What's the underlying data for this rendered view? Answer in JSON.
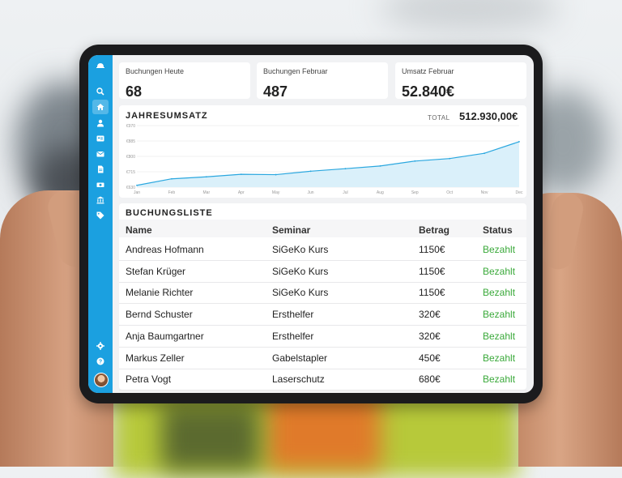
{
  "colors": {
    "accent": "#1ba0e0",
    "paid": "#3aa93a",
    "chart_line": "#2aa7df",
    "chart_fill": "#d6eefa"
  },
  "sidebar": {
    "icons": [
      "logo-icon",
      "search-icon",
      "home-icon",
      "user-icon",
      "contact-card-icon",
      "mail-icon",
      "document-icon",
      "payment-icon",
      "bank-icon",
      "tag-icon",
      "settings-icon",
      "help-icon"
    ],
    "active": "home-icon"
  },
  "stats": [
    {
      "label": "Buchungen Heute",
      "value": "68"
    },
    {
      "label": "Buchungen Februar",
      "value": "487"
    },
    {
      "label": "Umsatz Februar",
      "value": "52.840€"
    }
  ],
  "revenue": {
    "title": "JAHRESUMSATZ",
    "total_label": "TOTAL",
    "total_value": "512.930,00€"
  },
  "chart_data": {
    "type": "area",
    "x": [
      "Jan",
      "Feb",
      "Mar",
      "Apr",
      "May",
      "Jun",
      "Jul",
      "Aug",
      "Sep",
      "Oct",
      "Nov",
      "Dec"
    ],
    "y_ticks": [
      "€970",
      "€885",
      "€800",
      "€715",
      "€630"
    ],
    "values": [
      640,
      676,
      687,
      701,
      699,
      718,
      732,
      747,
      774,
      788,
      817,
      881
    ],
    "ylim": [
      630,
      970
    ],
    "grid": true
  },
  "bookings": {
    "title": "BUCHUNGSLISTE",
    "columns": [
      "Name",
      "Seminar",
      "Betrag",
      "Status"
    ],
    "rows": [
      [
        "Andreas Hofmann",
        "SiGeKo Kurs",
        "1150€",
        "Bezahlt"
      ],
      [
        "Stefan Krüger",
        "SiGeKo Kurs",
        "1150€",
        "Bezahlt"
      ],
      [
        "Melanie Richter",
        "SiGeKo Kurs",
        "1150€",
        "Bezahlt"
      ],
      [
        "Bernd Schuster",
        "Ersthelfer",
        "320€",
        "Bezahlt"
      ],
      [
        "Anja Baumgartner",
        "Ersthelfer",
        "320€",
        "Bezahlt"
      ],
      [
        "Markus Zeller",
        "Gabelstapler",
        "450€",
        "Bezahlt"
      ],
      [
        "Petra Vogt",
        "Laserschutz",
        "680€",
        "Bezahlt"
      ]
    ]
  }
}
